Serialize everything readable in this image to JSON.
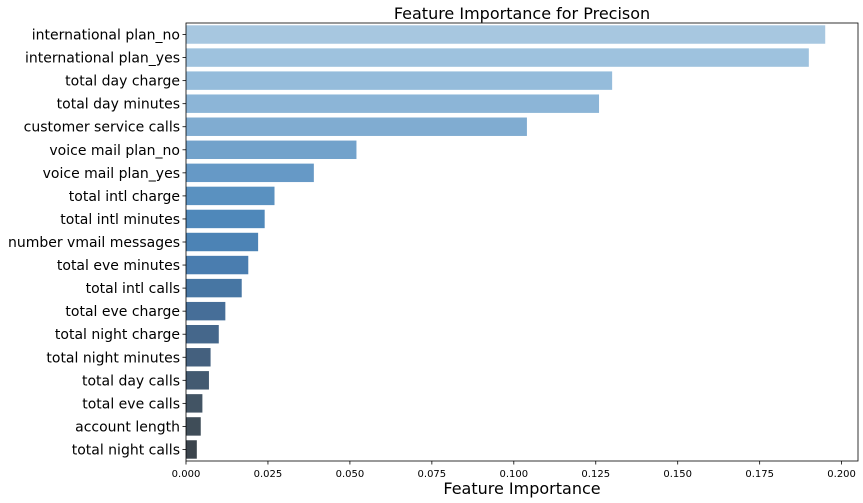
{
  "chart_data": {
    "type": "bar",
    "orientation": "horizontal",
    "title": "Feature Importance for Precison",
    "xlabel": "Feature Importance",
    "ylabel": "",
    "xlim": [
      0,
      0.205
    ],
    "xticks": [
      "0.000",
      "0.025",
      "0.050",
      "0.075",
      "0.100",
      "0.125",
      "0.150",
      "0.175",
      "0.200"
    ],
    "grid": false,
    "legend": "none",
    "palette": "Blues_d",
    "categories": [
      "international plan_no",
      "international plan_yes",
      "total day charge",
      "total day minutes",
      "customer service calls",
      "voice mail plan_no",
      "voice mail plan_yes",
      "total intl charge",
      "total intl minutes",
      "number vmail messages",
      "total eve minutes",
      "total intl calls",
      "total eve charge",
      "total night charge",
      "total night minutes",
      "total day calls",
      "total eve calls",
      "account length",
      "total night calls"
    ],
    "values": [
      0.195,
      0.19,
      0.13,
      0.126,
      0.104,
      0.052,
      0.039,
      0.027,
      0.024,
      0.022,
      0.019,
      0.017,
      0.012,
      0.01,
      0.0075,
      0.007,
      0.005,
      0.0045,
      0.0033
    ],
    "colors": [
      "#a7c7e0",
      "#9ec2de",
      "#95bcdb",
      "#8cb5d7",
      "#80acd1",
      "#72a2cb",
      "#6699c6",
      "#5a91c0",
      "#4f88ba",
      "#4c83b5",
      "#4a7daf",
      "#4776a3",
      "#466e98",
      "#45678b",
      "#44607e",
      "#435a71",
      "#425464",
      "#3f4d58",
      "#3b444c"
    ]
  }
}
